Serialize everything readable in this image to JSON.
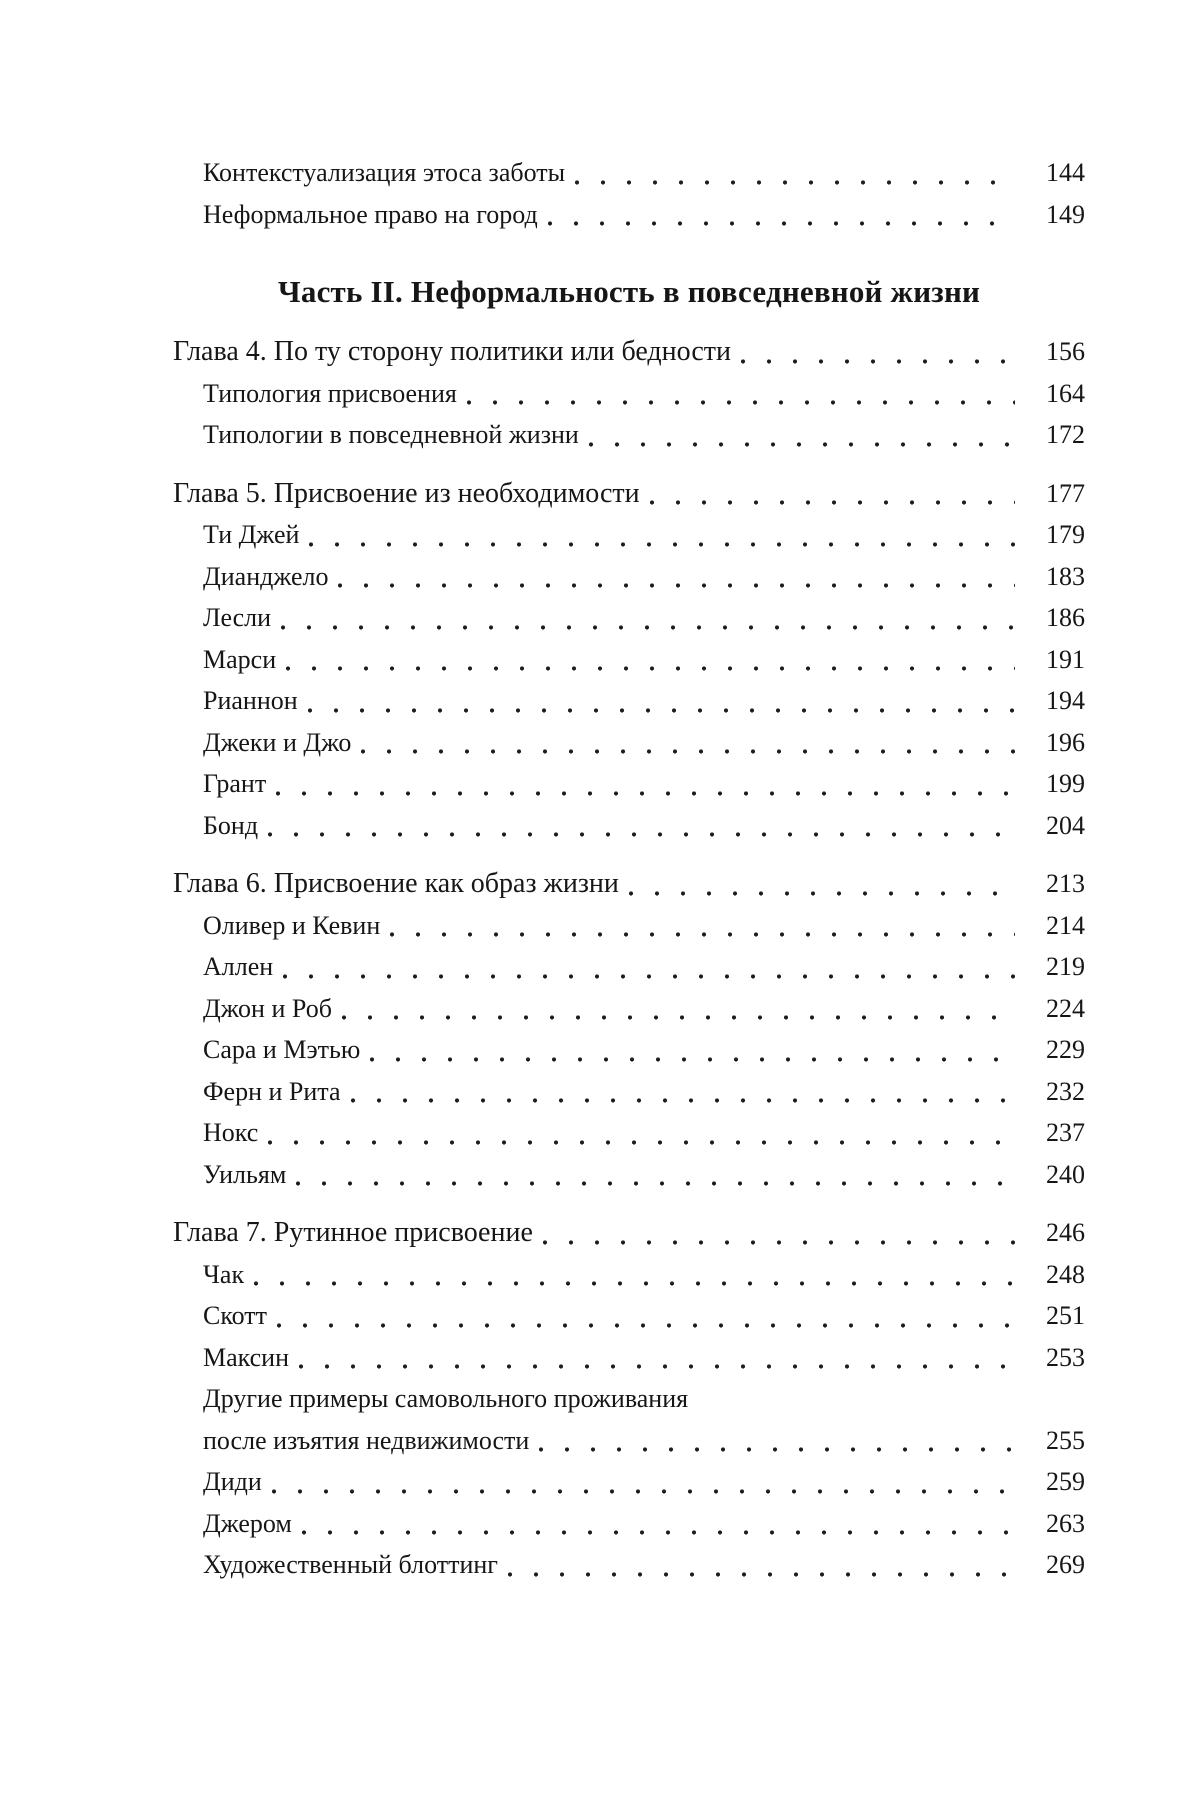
{
  "toc": {
    "leading_items": [
      {
        "label": "Контекстуализация этоса заботы",
        "page": "144"
      },
      {
        "label": "Неформальное право на город",
        "page": "149"
      }
    ],
    "part_heading": "Часть II. Неформальность в повседневной жизни",
    "chapters": [
      {
        "title": "Глава 4. По ту сторону политики или бедности",
        "page": "156",
        "items": [
          {
            "label": "Типология присвоения",
            "page": "164"
          },
          {
            "label": "Типологии в повседневной жизни",
            "page": "172"
          }
        ]
      },
      {
        "title": "Глава 5. Присвоение из необходимости",
        "page": "177",
        "items": [
          {
            "label": "Ти Джей",
            "page": "179"
          },
          {
            "label": "Дианджело",
            "page": "183"
          },
          {
            "label": "Лесли",
            "page": "186"
          },
          {
            "label": "Марси",
            "page": "191"
          },
          {
            "label": "Рианнон",
            "page": "194"
          },
          {
            "label": "Джеки и Джо",
            "page": "196"
          },
          {
            "label": "Грант",
            "page": "199"
          },
          {
            "label": "Бонд",
            "page": "204"
          }
        ]
      },
      {
        "title": "Глава 6. Присвоение как образ жизни",
        "page": "213",
        "items": [
          {
            "label": "Оливер и Кевин",
            "page": "214"
          },
          {
            "label": "Аллен",
            "page": "219"
          },
          {
            "label": "Джон и Роб",
            "page": "224"
          },
          {
            "label": "Сара и Мэтью",
            "page": "229"
          },
          {
            "label": "Ферн и Рита",
            "page": "232"
          },
          {
            "label": "Нокс",
            "page": "237"
          },
          {
            "label": "Уильям",
            "page": "240"
          }
        ]
      },
      {
        "title": "Глава 7. Рутинное присвоение",
        "page": "246",
        "items": [
          {
            "label": "Чак",
            "page": "248"
          },
          {
            "label": "Скотт",
            "page": "251"
          },
          {
            "label": "Максин",
            "page": "253"
          },
          {
            "label_lines": [
              "Другие примеры самовольного проживания",
              "после изъятия недвижимости"
            ],
            "page": "255"
          },
          {
            "label": "Диди",
            "page": "259"
          },
          {
            "label": "Джером",
            "page": "263"
          },
          {
            "label": "Художественный блоттинг",
            "page": "269"
          }
        ]
      }
    ]
  }
}
